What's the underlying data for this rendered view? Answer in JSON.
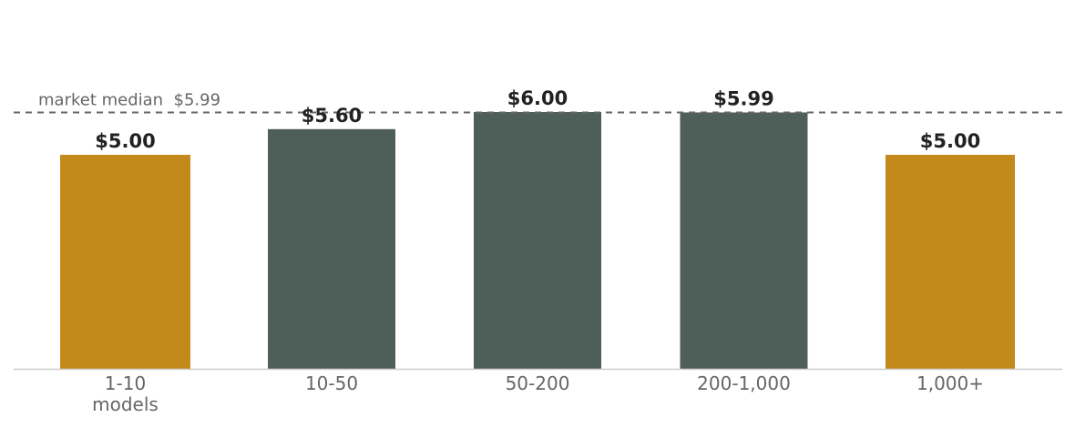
{
  "chart_data": {
    "type": "bar",
    "categories": [
      "1-10\nmodels",
      "10-50",
      "50-200",
      "200-1,000",
      "1,000+"
    ],
    "values": [
      5.0,
      5.6,
      6.0,
      5.99,
      5.0
    ],
    "value_labels": [
      "$5.00",
      "$5.60",
      "$6.00",
      "$5.99",
      "$5.00"
    ],
    "bar_colors": [
      "#c4891b",
      "#4e5f59",
      "#4e5f59",
      "#4e5f59",
      "#c4891b"
    ],
    "ylim": [
      0,
      6.0
    ],
    "grid": false,
    "reference_line": {
      "label": "market median  $5.99",
      "value": 5.99,
      "style": "dashed",
      "color": "#666666"
    },
    "xlabel": "",
    "ylabel": ""
  },
  "colors": {
    "label_text": "#222222",
    "tick_text": "#666666",
    "axis": "#cccccc"
  }
}
